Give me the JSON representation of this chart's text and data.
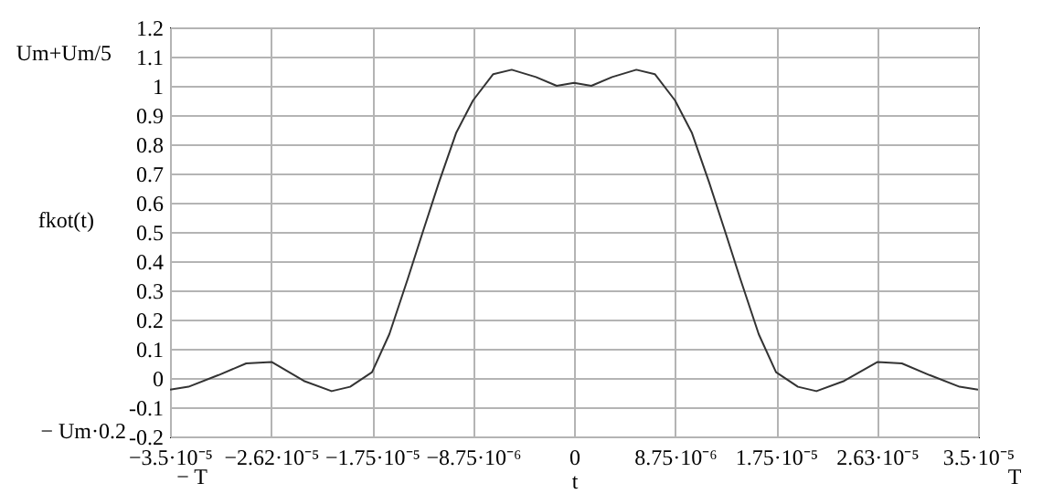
{
  "chart_data": {
    "type": "line",
    "xlabel": "t",
    "ylabel": "fkot(t)",
    "annotations": [
      "Um+Um/5",
      "− Um·0.2",
      "− T",
      "T"
    ],
    "x": [
      -3.5e-05,
      -3.34e-05,
      -3.08e-05,
      -2.84e-05,
      -2.62e-05,
      -2.34e-05,
      -2.1e-05,
      -1.94e-05,
      -1.75e-05,
      -1.6e-05,
      -1.44e-05,
      -1.31e-05,
      -1.17e-05,
      -1.02e-05,
      -8.75e-06,
      -7e-06,
      -5.4e-06,
      -3.3e-06,
      -1.5e-06,
      0,
      1.5e-06,
      3.3e-06,
      5.4e-06,
      7e-06,
      8.75e-06,
      1.02e-05,
      1.17e-05,
      1.31e-05,
      1.44e-05,
      1.6e-05,
      1.75e-05,
      1.94e-05,
      2.1e-05,
      2.34e-05,
      2.63e-05,
      2.84e-05,
      3.08e-05,
      3.34e-05,
      3.5e-05
    ],
    "series": [
      {
        "color": "#333333",
        "values": [
          -0.04,
          -0.03,
          0.01,
          0.05,
          0.055,
          -0.01,
          -0.045,
          -0.03,
          0.02,
          0.15,
          0.34,
          0.5,
          0.67,
          0.84,
          0.95,
          1.04,
          1.055,
          1.03,
          1.0,
          1.01,
          1.0,
          1.03,
          1.055,
          1.04,
          0.95,
          0.84,
          0.67,
          0.5,
          0.34,
          0.15,
          0.02,
          -0.03,
          -0.045,
          -0.01,
          0.055,
          0.05,
          0.01,
          -0.03,
          -0.04
        ]
      }
    ],
    "xlim": [
      -3.5e-05,
      3.5e-05
    ],
    "xticks": [
      {
        "value": -3.5e-05,
        "label": "−3.5·10⁻⁵"
      },
      {
        "value": -2.625e-05,
        "label": "−2.62·10⁻⁵"
      },
      {
        "value": -1.75e-05,
        "label": "−1.75·10⁻⁵"
      },
      {
        "value": -8.75e-06,
        "label": "−8.75·10⁻⁶"
      },
      {
        "value": 0,
        "label": "0"
      },
      {
        "value": 8.75e-06,
        "label": "8.75·10⁻⁶"
      },
      {
        "value": 1.75e-05,
        "label": "1.75·10⁻⁵"
      },
      {
        "value": 2.625e-05,
        "label": "2.63·10⁻⁵"
      },
      {
        "value": 3.5e-05,
        "label": "3.5·10⁻⁵"
      }
    ],
    "ylim": [
      -0.2,
      1.2
    ],
    "yticks": [
      -0.2,
      -0.1,
      0,
      0.1,
      0.2,
      0.3,
      0.4,
      0.5,
      0.6,
      0.7,
      0.8,
      0.9,
      1,
      1.1,
      1.2
    ],
    "grid": true
  }
}
